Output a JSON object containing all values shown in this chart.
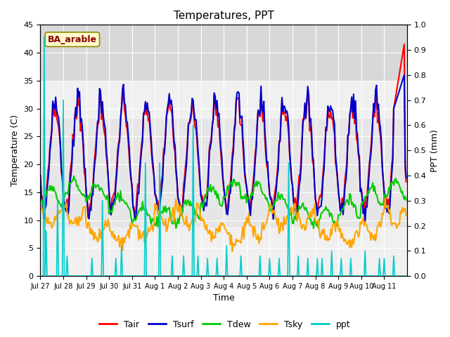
{
  "title": "Temperatures, PPT",
  "xlabel": "Time",
  "ylabel_left": "Temperature (C)",
  "ylabel_right": "PPT (mm)",
  "site_label": "BA_arable",
  "ylim_left": [
    0,
    45
  ],
  "ylim_right": [
    0.0,
    1.0
  ],
  "xtick_labels": [
    "Jul 27",
    "Jul 28",
    "Jul 29",
    "Jul 30",
    "Jul 31",
    "Aug 1",
    "Aug 2",
    "Aug 3",
    "Aug 4",
    "Aug 5",
    "Aug 6",
    "Aug 7",
    "Aug 8",
    "Aug 9",
    "Aug 10",
    "Aug 11"
  ],
  "legend_entries": [
    "Tair",
    "Tsurf",
    "Tdew",
    "Tsky",
    "ppt"
  ],
  "line_colors": {
    "Tair": "#FF0000",
    "Tsurf": "#0000CC",
    "Tdew": "#00CC00",
    "Tsky": "#FFA500",
    "ppt": "#00CCCC"
  },
  "line_widths": {
    "Tair": 1.5,
    "Tsurf": 1.5,
    "Tdew": 1.5,
    "Tsky": 1.5,
    "ppt": 1.2
  },
  "bg_color": "#FFFFFF",
  "plot_bg_color": "#F0F0F0",
  "band1_lo": 35,
  "band1_hi": 45,
  "band2_lo": 9,
  "band2_hi": 28,
  "n_points": 384,
  "days": 16
}
